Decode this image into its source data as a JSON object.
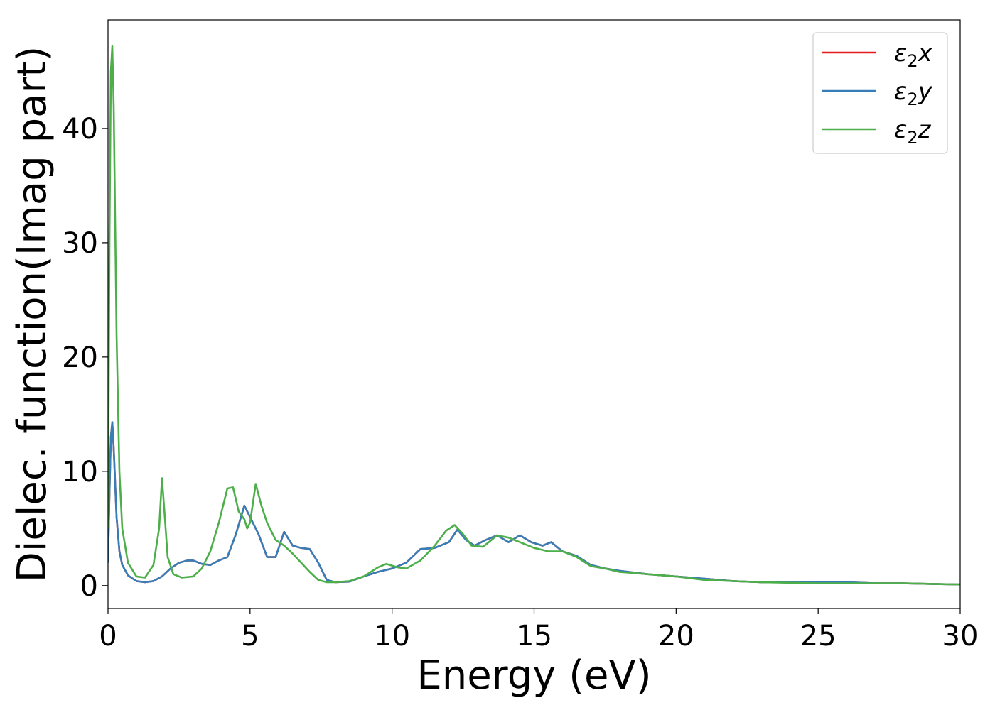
{
  "chart_data": {
    "type": "line",
    "title": "",
    "xlabel": "Energy (eV)",
    "ylabel": "Dielec. function(Imag part)",
    "xlim": [
      0,
      30
    ],
    "ylim": [
      -2,
      49.5
    ],
    "xticks": [
      0,
      5,
      10,
      15,
      20,
      25,
      30
    ],
    "yticks": [
      0,
      10,
      20,
      30,
      40
    ],
    "grid": false,
    "legend_position": "top-right",
    "series": [
      {
        "name": "ε₂x",
        "legend_base": "ε",
        "legend_sub": "2",
        "legend_suffix": "x",
        "color": "#e41a1c",
        "x": [
          0,
          0.05,
          0.1,
          0.15,
          0.2,
          0.3,
          0.4,
          0.5,
          0.7,
          1.0,
          1.3,
          1.6,
          1.9,
          2.2,
          2.5,
          2.8,
          3.0,
          3.3,
          3.6,
          3.9,
          4.2,
          4.5,
          4.8,
          5.0,
          5.3,
          5.6,
          5.9,
          6.2,
          6.5,
          6.8,
          7.1,
          7.4,
          7.7,
          8.0,
          8.5,
          9.0,
          9.5,
          10.0,
          10.5,
          11.0,
          11.5,
          12.0,
          12.3,
          12.6,
          12.9,
          13.3,
          13.7,
          14.1,
          14.5,
          14.9,
          15.3,
          15.6,
          16.0,
          16.5,
          17.0,
          17.5,
          18.0,
          19.0,
          20.0,
          21.0,
          22.0,
          23.0,
          24.0,
          25.0,
          26.0,
          27.0,
          28.0,
          29.0,
          30.0
        ],
        "y": [
          2,
          8,
          13,
          14.3,
          12,
          6,
          3,
          1.8,
          0.9,
          0.4,
          0.3,
          0.4,
          0.8,
          1.5,
          2.0,
          2.2,
          2.2,
          1.9,
          1.8,
          2.2,
          2.5,
          4.5,
          7.0,
          6.0,
          4.5,
          2.5,
          2.5,
          4.7,
          3.5,
          3.3,
          3.2,
          2.0,
          0.5,
          0.3,
          0.35,
          0.8,
          1.2,
          1.5,
          2.0,
          3.2,
          3.3,
          3.8,
          4.9,
          4.0,
          3.5,
          4.0,
          4.4,
          3.8,
          4.4,
          3.8,
          3.5,
          3.8,
          3.0,
          2.6,
          1.8,
          1.5,
          1.3,
          1.0,
          0.8,
          0.6,
          0.4,
          0.3,
          0.3,
          0.3,
          0.3,
          0.2,
          0.2,
          0.15,
          0.1
        ]
      },
      {
        "name": "ε₂y",
        "legend_base": "ε",
        "legend_sub": "2",
        "legend_suffix": "y",
        "color": "#377eb8",
        "x": [
          0,
          0.05,
          0.1,
          0.15,
          0.2,
          0.3,
          0.4,
          0.5,
          0.7,
          1.0,
          1.3,
          1.6,
          1.9,
          2.2,
          2.5,
          2.8,
          3.0,
          3.3,
          3.6,
          3.9,
          4.2,
          4.5,
          4.8,
          5.0,
          5.3,
          5.6,
          5.9,
          6.2,
          6.5,
          6.8,
          7.1,
          7.4,
          7.7,
          8.0,
          8.5,
          9.0,
          9.5,
          10.0,
          10.5,
          11.0,
          11.5,
          12.0,
          12.3,
          12.6,
          12.9,
          13.3,
          13.7,
          14.1,
          14.5,
          14.9,
          15.3,
          15.6,
          16.0,
          16.5,
          17.0,
          17.5,
          18.0,
          19.0,
          20.0,
          21.0,
          22.0,
          23.0,
          24.0,
          25.0,
          26.0,
          27.0,
          28.0,
          29.0,
          30.0
        ],
        "y": [
          2,
          8,
          13,
          14.3,
          12,
          6,
          3,
          1.8,
          0.9,
          0.4,
          0.3,
          0.4,
          0.8,
          1.5,
          2.0,
          2.2,
          2.2,
          1.9,
          1.8,
          2.2,
          2.5,
          4.5,
          7.0,
          6.0,
          4.5,
          2.5,
          2.5,
          4.7,
          3.5,
          3.3,
          3.2,
          2.0,
          0.5,
          0.3,
          0.35,
          0.8,
          1.2,
          1.5,
          2.0,
          3.2,
          3.3,
          3.8,
          4.9,
          4.0,
          3.5,
          4.0,
          4.4,
          3.8,
          4.4,
          3.8,
          3.5,
          3.8,
          3.0,
          2.6,
          1.8,
          1.5,
          1.3,
          1.0,
          0.8,
          0.6,
          0.4,
          0.3,
          0.3,
          0.3,
          0.3,
          0.2,
          0.2,
          0.15,
          0.1
        ]
      },
      {
        "name": "ε₂z",
        "legend_base": "ε",
        "legend_sub": "2",
        "legend_suffix": "z",
        "color": "#4daf4a",
        "x": [
          0,
          0.05,
          0.1,
          0.15,
          0.2,
          0.25,
          0.3,
          0.4,
          0.5,
          0.7,
          1.0,
          1.3,
          1.6,
          1.8,
          1.9,
          2.0,
          2.1,
          2.3,
          2.6,
          3.0,
          3.3,
          3.6,
          3.9,
          4.2,
          4.4,
          4.6,
          4.8,
          4.9,
          5.0,
          5.2,
          5.4,
          5.6,
          5.9,
          6.2,
          6.5,
          6.8,
          7.1,
          7.4,
          7.7,
          8.0,
          8.5,
          9.0,
          9.5,
          9.8,
          10.2,
          10.5,
          11.0,
          11.5,
          11.9,
          12.2,
          12.5,
          12.8,
          13.2,
          13.7,
          14.1,
          14.5,
          15.0,
          15.5,
          16.0,
          16.5,
          17.0,
          17.5,
          18.0,
          19.0,
          20.0,
          21.0,
          22.0,
          23.0,
          24.0,
          25.0,
          26.0,
          27.0,
          28.0,
          29.0,
          30.0
        ],
        "y": [
          5,
          30,
          45,
          47.2,
          42,
          32,
          22,
          10,
          5.0,
          2.0,
          0.8,
          0.7,
          1.8,
          5.0,
          9.4,
          6.0,
          2.5,
          1.0,
          0.7,
          0.8,
          1.5,
          3.0,
          5.5,
          8.5,
          8.6,
          6.5,
          5.8,
          5.0,
          5.5,
          8.9,
          7.0,
          5.5,
          4.0,
          3.5,
          2.8,
          2.0,
          1.2,
          0.5,
          0.3,
          0.3,
          0.4,
          0.8,
          1.6,
          1.9,
          1.6,
          1.5,
          2.2,
          3.5,
          4.8,
          5.3,
          4.5,
          3.5,
          3.4,
          4.4,
          4.2,
          3.8,
          3.3,
          3.0,
          3.0,
          2.5,
          1.7,
          1.5,
          1.2,
          1.0,
          0.8,
          0.5,
          0.4,
          0.3,
          0.25,
          0.2,
          0.2,
          0.2,
          0.2,
          0.15,
          0.1
        ]
      }
    ]
  }
}
